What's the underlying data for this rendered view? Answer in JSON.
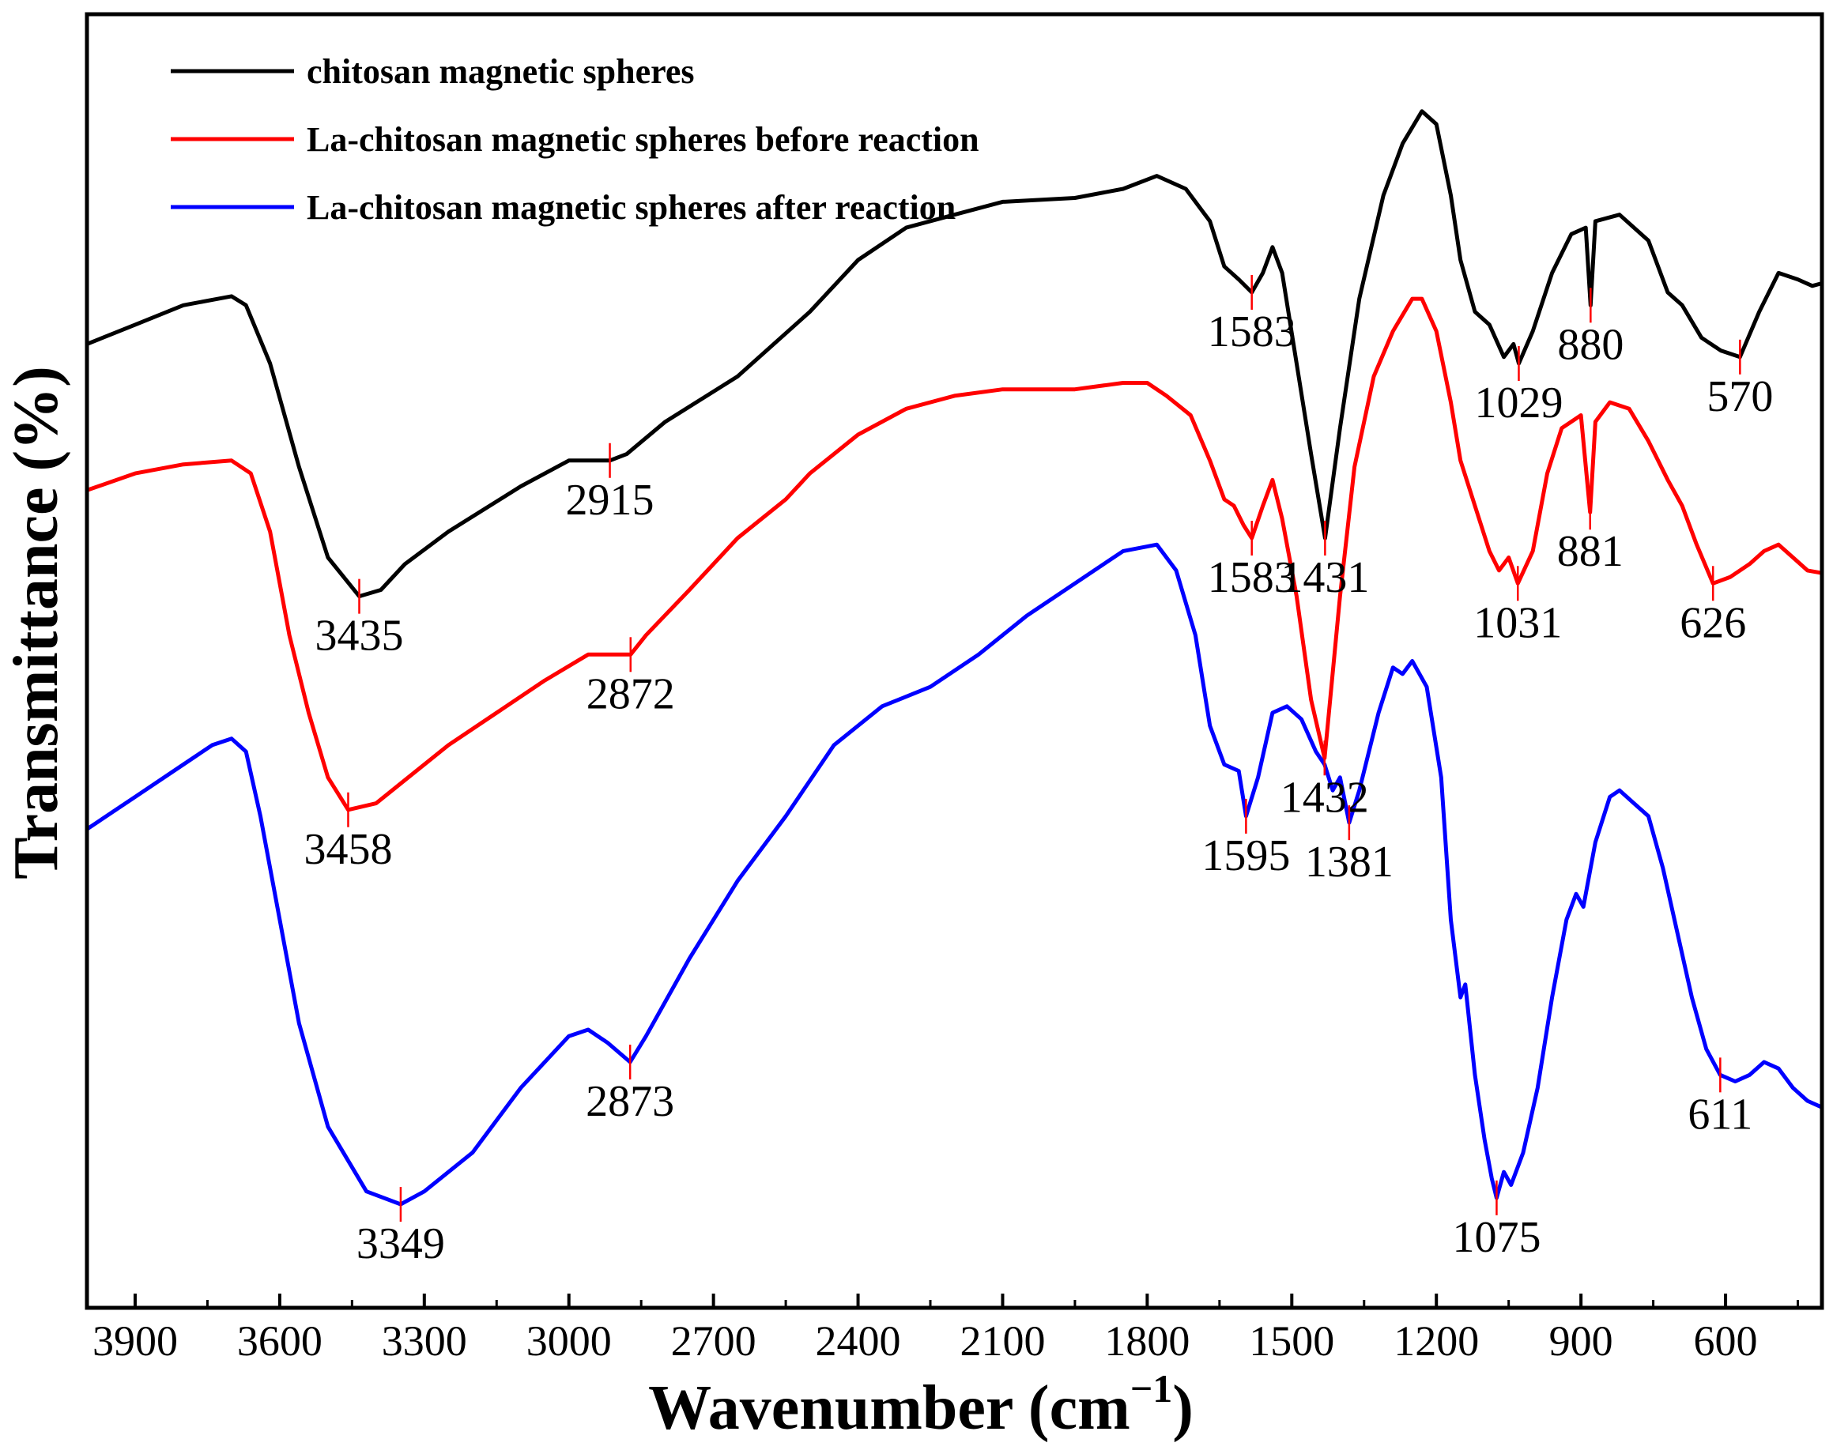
{
  "chart_data": {
    "type": "line",
    "xlabel": "Wavenumber (cm",
    "xlabel_sup": "−1",
    "xlabel_close": ")",
    "ylabel": "Transmittance (%)",
    "xlim": [
      4000,
      400
    ],
    "x_reversed": true,
    "x_ticks": [
      "3900",
      "3600",
      "3300",
      "3000",
      "2700",
      "2400",
      "2100",
      "1800",
      "1500",
      "1200",
      "900",
      "600"
    ],
    "y_ticks_shown": false,
    "legend_position": "top-left",
    "series": [
      {
        "name": "chitosan magnetic spheres",
        "color": "#000000",
        "points": [
          [
            4000,
            0.255
          ],
          [
            3900,
            0.24
          ],
          [
            3800,
            0.225
          ],
          [
            3700,
            0.218
          ],
          [
            3670,
            0.225
          ],
          [
            3620,
            0.27
          ],
          [
            3560,
            0.35
          ],
          [
            3500,
            0.42
          ],
          [
            3435,
            0.45
          ],
          [
            3390,
            0.445
          ],
          [
            3340,
            0.425
          ],
          [
            3250,
            0.4
          ],
          [
            3100,
            0.365
          ],
          [
            3000,
            0.345
          ],
          [
            2915,
            0.345
          ],
          [
            2880,
            0.34
          ],
          [
            2800,
            0.315
          ],
          [
            2650,
            0.28
          ],
          [
            2500,
            0.23
          ],
          [
            2400,
            0.19
          ],
          [
            2300,
            0.165
          ],
          [
            2200,
            0.155
          ],
          [
            2100,
            0.145
          ],
          [
            1950,
            0.142
          ],
          [
            1850,
            0.135
          ],
          [
            1780,
            0.125
          ],
          [
            1720,
            0.135
          ],
          [
            1670,
            0.16
          ],
          [
            1640,
            0.195
          ],
          [
            1610,
            0.205
          ],
          [
            1583,
            0.215
          ],
          [
            1560,
            0.2
          ],
          [
            1540,
            0.18
          ],
          [
            1520,
            0.2
          ],
          [
            1490,
            0.27
          ],
          [
            1460,
            0.34
          ],
          [
            1431,
            0.405
          ],
          [
            1400,
            0.32
          ],
          [
            1360,
            0.22
          ],
          [
            1310,
            0.14
          ],
          [
            1270,
            0.1
          ],
          [
            1230,
            0.075
          ],
          [
            1200,
            0.085
          ],
          [
            1170,
            0.14
          ],
          [
            1150,
            0.19
          ],
          [
            1120,
            0.23
          ],
          [
            1090,
            0.24
          ],
          [
            1060,
            0.265
          ],
          [
            1040,
            0.255
          ],
          [
            1029,
            0.27
          ],
          [
            1000,
            0.245
          ],
          [
            960,
            0.2
          ],
          [
            920,
            0.17
          ],
          [
            890,
            0.165
          ],
          [
            880,
            0.225
          ],
          [
            870,
            0.16
          ],
          [
            820,
            0.155
          ],
          [
            760,
            0.175
          ],
          [
            720,
            0.215
          ],
          [
            690,
            0.225
          ],
          [
            650,
            0.25
          ],
          [
            610,
            0.26
          ],
          [
            570,
            0.265
          ],
          [
            530,
            0.23
          ],
          [
            490,
            0.2
          ],
          [
            450,
            0.205
          ],
          [
            420,
            0.21
          ],
          [
            400,
            0.208
          ]
        ]
      },
      {
        "name": "La-chitosan magnetic spheres before reaction",
        "color": "#ff0000",
        "points": [
          [
            4000,
            0.368
          ],
          [
            3900,
            0.355
          ],
          [
            3800,
            0.348
          ],
          [
            3700,
            0.345
          ],
          [
            3660,
            0.355
          ],
          [
            3620,
            0.4
          ],
          [
            3580,
            0.48
          ],
          [
            3540,
            0.54
          ],
          [
            3500,
            0.59
          ],
          [
            3458,
            0.615
          ],
          [
            3400,
            0.61
          ],
          [
            3350,
            0.595
          ],
          [
            3250,
            0.565
          ],
          [
            3150,
            0.54
          ],
          [
            3050,
            0.515
          ],
          [
            2960,
            0.495
          ],
          [
            2872,
            0.495
          ],
          [
            2840,
            0.48
          ],
          [
            2750,
            0.445
          ],
          [
            2650,
            0.405
          ],
          [
            2550,
            0.375
          ],
          [
            2500,
            0.355
          ],
          [
            2400,
            0.325
          ],
          [
            2300,
            0.305
          ],
          [
            2200,
            0.295
          ],
          [
            2100,
            0.29
          ],
          [
            1950,
            0.29
          ],
          [
            1850,
            0.285
          ],
          [
            1800,
            0.285
          ],
          [
            1760,
            0.295
          ],
          [
            1710,
            0.31
          ],
          [
            1670,
            0.345
          ],
          [
            1640,
            0.375
          ],
          [
            1620,
            0.38
          ],
          [
            1600,
            0.395
          ],
          [
            1583,
            0.405
          ],
          [
            1560,
            0.38
          ],
          [
            1540,
            0.36
          ],
          [
            1520,
            0.39
          ],
          [
            1490,
            0.45
          ],
          [
            1460,
            0.53
          ],
          [
            1432,
            0.575
          ],
          [
            1400,
            0.45
          ],
          [
            1370,
            0.35
          ],
          [
            1330,
            0.28
          ],
          [
            1290,
            0.245
          ],
          [
            1250,
            0.22
          ],
          [
            1230,
            0.22
          ],
          [
            1200,
            0.245
          ],
          [
            1170,
            0.3
          ],
          [
            1150,
            0.345
          ],
          [
            1120,
            0.38
          ],
          [
            1090,
            0.415
          ],
          [
            1070,
            0.43
          ],
          [
            1050,
            0.42
          ],
          [
            1031,
            0.44
          ],
          [
            1000,
            0.415
          ],
          [
            970,
            0.355
          ],
          [
            940,
            0.32
          ],
          [
            900,
            0.31
          ],
          [
            881,
            0.385
          ],
          [
            870,
            0.315
          ],
          [
            840,
            0.3
          ],
          [
            800,
            0.305
          ],
          [
            760,
            0.33
          ],
          [
            720,
            0.36
          ],
          [
            690,
            0.38
          ],
          [
            660,
            0.41
          ],
          [
            626,
            0.44
          ],
          [
            590,
            0.435
          ],
          [
            550,
            0.425
          ],
          [
            520,
            0.415
          ],
          [
            490,
            0.41
          ],
          [
            460,
            0.42
          ],
          [
            430,
            0.43
          ],
          [
            400,
            0.432
          ]
        ]
      },
      {
        "name": "La-chitosan magnetic spheres after reaction",
        "color": "#0000ff",
        "points": [
          [
            4000,
            0.63
          ],
          [
            3900,
            0.605
          ],
          [
            3800,
            0.58
          ],
          [
            3740,
            0.565
          ],
          [
            3700,
            0.56
          ],
          [
            3670,
            0.57
          ],
          [
            3640,
            0.62
          ],
          [
            3600,
            0.7
          ],
          [
            3560,
            0.78
          ],
          [
            3500,
            0.86
          ],
          [
            3420,
            0.91
          ],
          [
            3349,
            0.92
          ],
          [
            3300,
            0.91
          ],
          [
            3200,
            0.88
          ],
          [
            3100,
            0.83
          ],
          [
            3000,
            0.79
          ],
          [
            2960,
            0.785
          ],
          [
            2920,
            0.795
          ],
          [
            2873,
            0.81
          ],
          [
            2840,
            0.79
          ],
          [
            2750,
            0.73
          ],
          [
            2650,
            0.67
          ],
          [
            2550,
            0.62
          ],
          [
            2450,
            0.565
          ],
          [
            2350,
            0.535
          ],
          [
            2250,
            0.52
          ],
          [
            2150,
            0.495
          ],
          [
            2050,
            0.465
          ],
          [
            1950,
            0.44
          ],
          [
            1850,
            0.415
          ],
          [
            1780,
            0.41
          ],
          [
            1740,
            0.43
          ],
          [
            1700,
            0.48
          ],
          [
            1670,
            0.55
          ],
          [
            1640,
            0.58
          ],
          [
            1610,
            0.585
          ],
          [
            1595,
            0.62
          ],
          [
            1570,
            0.59
          ],
          [
            1540,
            0.54
          ],
          [
            1510,
            0.535
          ],
          [
            1480,
            0.545
          ],
          [
            1450,
            0.57
          ],
          [
            1432,
            0.58
          ],
          [
            1415,
            0.6
          ],
          [
            1400,
            0.59
          ],
          [
            1381,
            0.625
          ],
          [
            1360,
            0.6
          ],
          [
            1320,
            0.54
          ],
          [
            1290,
            0.505
          ],
          [
            1270,
            0.51
          ],
          [
            1250,
            0.5
          ],
          [
            1220,
            0.52
          ],
          [
            1190,
            0.59
          ],
          [
            1170,
            0.7
          ],
          [
            1150,
            0.76
          ],
          [
            1140,
            0.75
          ],
          [
            1120,
            0.82
          ],
          [
            1100,
            0.87
          ],
          [
            1085,
            0.9
          ],
          [
            1075,
            0.915
          ],
          [
            1060,
            0.895
          ],
          [
            1045,
            0.905
          ],
          [
            1020,
            0.88
          ],
          [
            990,
            0.83
          ],
          [
            960,
            0.76
          ],
          [
            930,
            0.7
          ],
          [
            910,
            0.68
          ],
          [
            895,
            0.69
          ],
          [
            870,
            0.64
          ],
          [
            840,
            0.605
          ],
          [
            820,
            0.6
          ],
          [
            790,
            0.61
          ],
          [
            760,
            0.62
          ],
          [
            730,
            0.66
          ],
          [
            700,
            0.71
          ],
          [
            670,
            0.76
          ],
          [
            640,
            0.8
          ],
          [
            611,
            0.82
          ],
          [
            580,
            0.825
          ],
          [
            550,
            0.82
          ],
          [
            520,
            0.81
          ],
          [
            490,
            0.815
          ],
          [
            460,
            0.83
          ],
          [
            430,
            0.84
          ],
          [
            400,
            0.845
          ]
        ]
      }
    ],
    "peak_labels": [
      {
        "series": 0,
        "x": 3435,
        "text": "3435",
        "pos": "below"
      },
      {
        "series": 0,
        "x": 2915,
        "text": "2915",
        "pos": "below"
      },
      {
        "series": 0,
        "x": 1583,
        "text": "1583",
        "pos": "below"
      },
      {
        "series": 0,
        "x": 1431,
        "text": "1431",
        "pos": "below"
      },
      {
        "series": 0,
        "x": 1029,
        "text": "1029",
        "pos": "below"
      },
      {
        "series": 0,
        "x": 880,
        "text": "880",
        "pos": "below"
      },
      {
        "series": 0,
        "x": 570,
        "text": "570",
        "pos": "below"
      },
      {
        "series": 1,
        "x": 3458,
        "text": "3458",
        "pos": "below"
      },
      {
        "series": 1,
        "x": 2872,
        "text": "2872",
        "pos": "below"
      },
      {
        "series": 1,
        "x": 1583,
        "text": "1583",
        "pos": "below"
      },
      {
        "series": 1,
        "x": 1432,
        "text": "1432",
        "pos": "below"
      },
      {
        "series": 1,
        "x": 1031,
        "text": "1031",
        "pos": "below"
      },
      {
        "series": 1,
        "x": 881,
        "text": "881",
        "pos": "below"
      },
      {
        "series": 1,
        "x": 626,
        "text": "626",
        "pos": "below"
      },
      {
        "series": 2,
        "x": 3349,
        "text": "3349",
        "pos": "below"
      },
      {
        "series": 2,
        "x": 2873,
        "text": "2873",
        "pos": "below"
      },
      {
        "series": 2,
        "x": 1595,
        "text": "1595",
        "pos": "below"
      },
      {
        "series": 2,
        "x": 1381,
        "text": "1381",
        "pos": "below"
      },
      {
        "series": 2,
        "x": 1075,
        "text": "1075",
        "pos": "below"
      },
      {
        "series": 2,
        "x": 611,
        "text": "611",
        "pos": "below"
      }
    ]
  }
}
